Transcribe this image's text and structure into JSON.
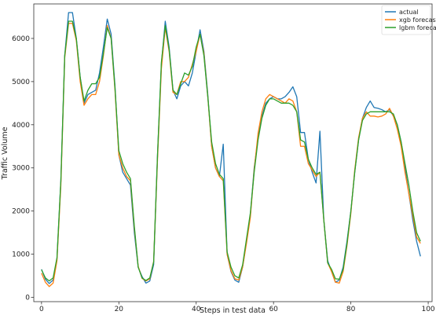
{
  "chart_data": {
    "type": "line",
    "xlabel": "Steps in test data",
    "ylabel": "Traffic Volume",
    "xlim": [
      -2,
      101
    ],
    "ylim": [
      -100,
      6800
    ],
    "xticks": [
      0,
      20,
      40,
      60,
      80,
      100
    ],
    "yticks": [
      0,
      1000,
      2000,
      3000,
      4000,
      5000,
      6000
    ],
    "grid": false,
    "legend_position": "top-right",
    "series": [
      {
        "name": "actual",
        "color": "#1f77b4",
        "values": [
          650,
          420,
          320,
          400,
          900,
          2700,
          5600,
          6600,
          6600,
          6000,
          5100,
          4500,
          4700,
          4750,
          4800,
          5200,
          5800,
          6450,
          6100,
          4900,
          3300,
          2900,
          2750,
          2600,
          1500,
          700,
          480,
          330,
          380,
          760,
          3300,
          5400,
          6400,
          5800,
          4800,
          4600,
          4900,
          5000,
          4900,
          5200,
          5700,
          6200,
          5700,
          4700,
          3500,
          3000,
          2800,
          3550,
          1000,
          600,
          400,
          350,
          700,
          1300,
          1900,
          3000,
          3700,
          4200,
          4500,
          4600,
          4650,
          4600,
          4600,
          4650,
          4750,
          4880,
          4650,
          3820,
          3820,
          3200,
          2900,
          2650,
          3850,
          1800,
          850,
          600,
          350,
          400,
          700,
          1300,
          2000,
          2900,
          3650,
          4150,
          4400,
          4550,
          4400,
          4380,
          4350,
          4300,
          4350,
          4200,
          4000,
          3600,
          3000,
          2400,
          1800,
          1300,
          950
        ]
      },
      {
        "name": "xgb forecast",
        "color": "#ff7f0e",
        "values": [
          560,
          350,
          250,
          330,
          850,
          2600,
          5550,
          6350,
          6350,
          5950,
          5000,
          4450,
          4600,
          4700,
          4700,
          5000,
          5600,
          6300,
          6000,
          4800,
          3300,
          3000,
          2800,
          2700,
          1600,
          720,
          440,
          380,
          430,
          830,
          3200,
          5300,
          6250,
          5700,
          4750,
          4700,
          5000,
          5000,
          5100,
          5400,
          5700,
          6100,
          5650,
          4650,
          3500,
          3000,
          2800,
          2700,
          1000,
          620,
          430,
          400,
          700,
          1250,
          1850,
          2950,
          3800,
          4300,
          4600,
          4700,
          4650,
          4600,
          4550,
          4500,
          4600,
          4550,
          4300,
          3500,
          3500,
          3100,
          2950,
          2800,
          2900,
          1800,
          800,
          600,
          350,
          330,
          600,
          1200,
          1950,
          2950,
          3700,
          4150,
          4300,
          4200,
          4200,
          4180,
          4200,
          4250,
          4380,
          4200,
          3900,
          3500,
          2900,
          2400,
          1900,
          1400,
          1250
        ]
      },
      {
        "name": "lgbm forecast",
        "color": "#2ca02c",
        "values": [
          640,
          450,
          380,
          450,
          920,
          2700,
          5600,
          6400,
          6400,
          6000,
          5100,
          4550,
          4800,
          4950,
          4950,
          5100,
          5650,
          6250,
          6000,
          4850,
          3400,
          3100,
          2900,
          2750,
          1650,
          700,
          450,
          390,
          450,
          820,
          3300,
          5450,
          6300,
          5750,
          4800,
          4700,
          4950,
          5200,
          5150,
          5350,
          5800,
          6100,
          5600,
          4650,
          3600,
          3100,
          2850,
          2750,
          1050,
          700,
          500,
          450,
          750,
          1350,
          1950,
          2900,
          3650,
          4150,
          4450,
          4600,
          4600,
          4550,
          4500,
          4500,
          4500,
          4450,
          4300,
          3650,
          3600,
          3200,
          3000,
          2850,
          2900,
          1800,
          800,
          650,
          430,
          420,
          650,
          1250,
          2000,
          2900,
          3650,
          4100,
          4250,
          4300,
          4300,
          4300,
          4300,
          4300,
          4300,
          4250,
          4000,
          3600,
          3100,
          2600,
          2000,
          1500,
          1300
        ]
      }
    ]
  }
}
